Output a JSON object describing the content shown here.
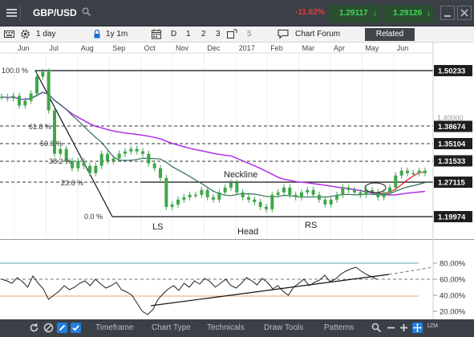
{
  "header": {
    "symbol": "GBP/USD",
    "change": "-11.62%",
    "bid": "1.29117",
    "ask": "1.29126",
    "colors": {
      "bar_bg": "#3b4047",
      "down": "#e23c3c",
      "price": "#3ed85a"
    }
  },
  "toolbar": {
    "interval": "1 day",
    "range": "1y 1m",
    "draw_modes": [
      "D",
      "1",
      "2",
      "3"
    ],
    "layout_count": "5",
    "chart_forum": "Chart Forum",
    "related": "Related"
  },
  "chart_data": [
    {
      "type": "line",
      "name": "price",
      "x_labels": [
        "Jun",
        "Jul",
        "Aug",
        "Sep",
        "Oct",
        "Nov",
        "Dec",
        "2017",
        "Feb",
        "Mar",
        "Apr",
        "May",
        "Jun"
      ],
      "y_labels": [
        "1.50233",
        "1.38674",
        "1.35104",
        "1.31533",
        "1.27115",
        "1.19974"
      ],
      "partial_y_label": "1.40000",
      "series": [
        {
          "values": [
            1.448,
            1.445,
            1.45,
            1.43,
            1.44,
            1.455,
            1.49,
            1.5,
            1.42,
            1.33,
            1.34,
            1.315,
            1.3,
            1.315,
            1.305,
            1.29,
            1.305,
            1.33,
            1.315,
            1.32,
            1.33,
            1.335,
            1.34,
            1.335,
            1.33,
            1.31,
            1.3,
            1.28,
            1.22,
            1.225,
            1.235,
            1.24,
            1.245,
            1.245,
            1.255,
            1.24,
            1.235,
            1.25,
            1.26,
            1.27,
            1.25,
            1.24,
            1.235,
            1.23,
            1.22,
            1.215,
            1.245,
            1.25,
            1.26,
            1.245,
            1.24,
            1.25,
            1.255,
            1.245,
            1.235,
            1.225,
            1.235,
            1.245,
            1.26,
            1.255,
            1.25,
            1.245,
            1.255,
            1.25,
            1.24,
            1.25,
            1.26,
            1.285,
            1.295,
            1.29,
            1.29,
            1.295,
            1.29
          ]
        }
      ],
      "annotations": {
        "fib_levels": [
          "100.0 %",
          "61.8 %",
          "50.0 %",
          "38.2 %",
          "23.6 %",
          "0.0 %"
        ],
        "neckline": "Neckline",
        "left_shoulder": "LS",
        "head": "Head",
        "right_shoulder": "RS"
      },
      "colors": {
        "ma_long": "#b12ee8",
        "ma_short": "#2f6f5a",
        "ma_fast": "#e0223a",
        "candles": "#3fa64a"
      }
    },
    {
      "type": "line",
      "name": "oscillator",
      "y_labels": [
        "80.00%",
        "60.00%",
        "40.00%",
        "20.00%"
      ],
      "ylim": [
        10,
        90
      ],
      "series": [
        {
          "values": [
            60,
            58,
            55,
            62,
            57,
            50,
            64,
            55,
            48,
            35,
            40,
            45,
            52,
            47,
            50,
            55,
            58,
            52,
            60,
            54,
            49,
            52,
            56,
            47,
            44,
            40,
            30,
            20,
            16,
            22,
            35,
            42,
            48,
            52,
            46,
            55,
            50,
            58,
            54,
            61,
            57,
            50,
            55,
            60,
            52,
            49,
            55,
            62,
            58,
            53,
            61,
            56,
            48,
            52,
            45,
            40,
            50,
            55,
            60,
            52,
            56,
            59,
            65,
            57,
            60,
            66,
            70,
            73,
            75,
            70,
            66,
            63,
            60
          ]
        }
      ],
      "colors": {
        "line": "#222222",
        "band_top": "#5aa5a9",
        "band_bottom": "#e0a36e"
      }
    }
  ],
  "bottom_bar": {
    "tabs": [
      "Timeframe",
      "Chart Type",
      "Technicals",
      "Draw Tools",
      "Patterns"
    ],
    "zoom_label": "1ZM"
  }
}
